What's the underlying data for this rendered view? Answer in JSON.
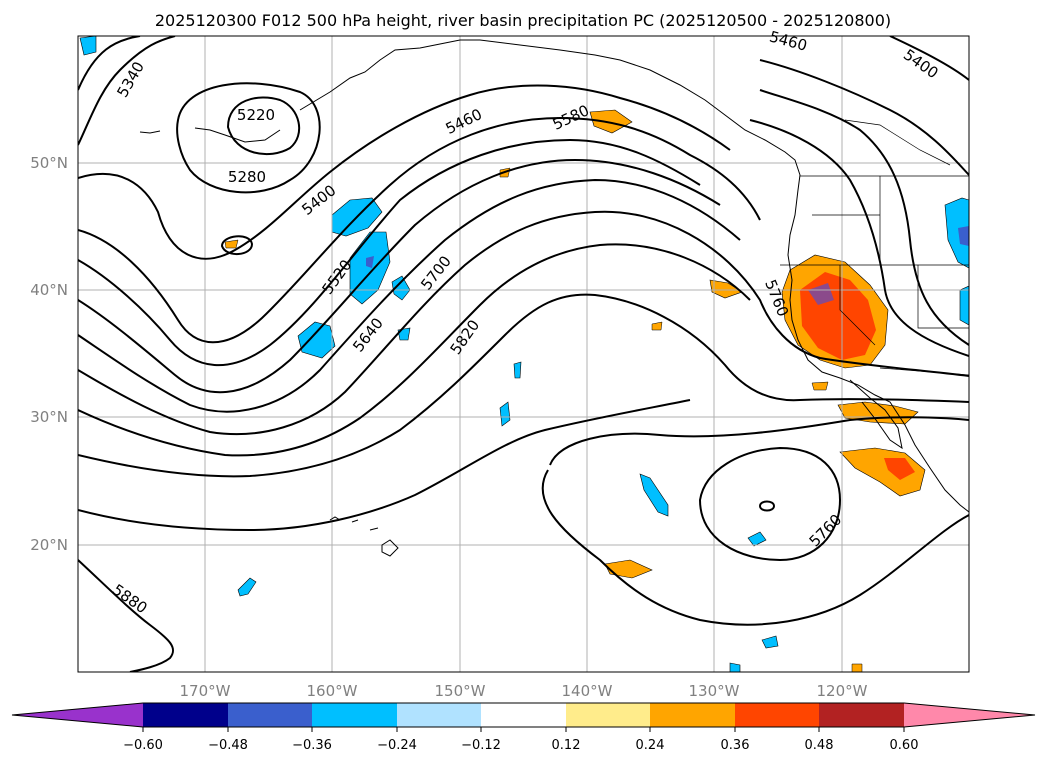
{
  "title": "2025120300 F012 500 hPa height, river basin precipitation PC (2025120500 - 2025120800)",
  "map": {
    "lat_labels": [
      "50°N",
      "40°N",
      "30°N",
      "20°N"
    ],
    "lon_labels": [
      "170°W",
      "160°W",
      "150°W",
      "140°W",
      "130°W",
      "120°W"
    ],
    "contour_labels": [
      "5220",
      "5280",
      "5340",
      "5400",
      "5460",
      "5520",
      "5580",
      "5640",
      "5700",
      "5760",
      "5820",
      "5880",
      "5460",
      "5400",
      "5760",
      "5760"
    ],
    "extent": {
      "lon": [
        -180,
        -110
      ],
      "lat": [
        10,
        60
      ]
    },
    "colors": {
      "ocean": "#ffffff",
      "coast": "#000000",
      "grid": "#b0b0b0",
      "contour": "#000000"
    }
  },
  "colorbar": {
    "ticks": [
      "−0.60",
      "−0.48",
      "−0.36",
      "−0.24",
      "−0.12",
      "0.12",
      "0.24",
      "0.36",
      "0.48",
      "0.60"
    ],
    "colors": [
      "#9932cc",
      "#00008b",
      "#3a5fcd",
      "#00bfff",
      "#b0e2ff",
      "#ffffff",
      "#ffec8b",
      "#ffa500",
      "#ff4500",
      "#b22222",
      "#ff88aa"
    ]
  }
}
